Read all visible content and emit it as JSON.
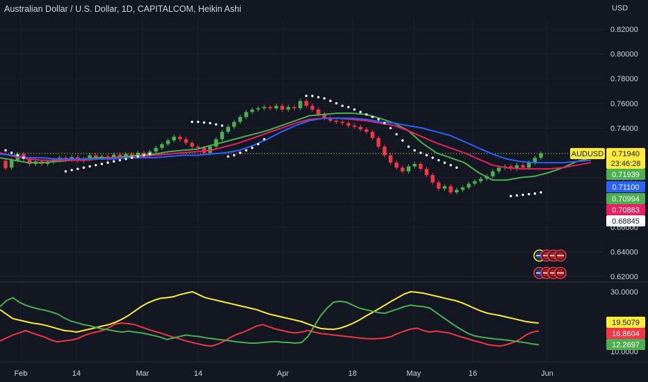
{
  "title": "Australian Dollar / U.S. Dollar, 1D, CAPITALCOM, Heikin Ashi",
  "currency": "USD",
  "colors": {
    "background": "#131722",
    "grid": "#1e222d",
    "up": "#4caf50",
    "down": "#f23645",
    "ma_fast": "#4caf50",
    "ma_mid": "#e91e63",
    "ma_slow": "#2962ff",
    "adx": "#ffeb3b",
    "di_plus": "#4caf50",
    "di_minus": "#f23645",
    "sar": "#ffffff",
    "symbol_label": "#ffeb3b"
  },
  "chart_data": [
    {
      "type": "candlestick",
      "x_ticks": [
        "Feb",
        "14",
        "Mar",
        "14",
        "Apr",
        "18",
        "May",
        "16",
        "Jun"
      ],
      "y_ticks": [
        "0.82000",
        "0.80000",
        "0.78000",
        "0.76000",
        "0.74000",
        "0.72000",
        "0.70000",
        "0.68000",
        "0.66000",
        "0.64000",
        "0.62000"
      ],
      "ylim": [
        0.613,
        0.826
      ],
      "symbol_label": "AUDUSD",
      "last_price": "0.71940",
      "countdown": "23:46:28",
      "price_labels": [
        {
          "value": "0.71939",
          "series": "ma_fast"
        },
        {
          "value": "0.71100",
          "series": "ma_slow"
        },
        {
          "value": "0.70994",
          "series": "ma_fast"
        },
        {
          "value": "0.70883",
          "series": "ma_mid"
        },
        {
          "value": "0.68845",
          "series": "sar"
        }
      ],
      "candles": [
        {
          "o": 0.7135,
          "c": 0.7075
        },
        {
          "o": 0.708,
          "c": 0.714
        },
        {
          "o": 0.714,
          "c": 0.719
        },
        {
          "o": 0.719,
          "c": 0.715
        },
        {
          "o": 0.715,
          "c": 0.711
        },
        {
          "o": 0.711,
          "c": 0.713
        },
        {
          "o": 0.713,
          "c": 0.711
        },
        {
          "o": 0.711,
          "c": 0.7125
        },
        {
          "o": 0.7125,
          "c": 0.714
        },
        {
          "o": 0.714,
          "c": 0.716
        },
        {
          "o": 0.716,
          "c": 0.7145
        },
        {
          "o": 0.7145,
          "c": 0.7165
        },
        {
          "o": 0.7165,
          "c": 0.7135
        },
        {
          "o": 0.7135,
          "c": 0.715
        },
        {
          "o": 0.715,
          "c": 0.718
        },
        {
          "o": 0.718,
          "c": 0.716
        },
        {
          "o": 0.716,
          "c": 0.717
        },
        {
          "o": 0.717,
          "c": 0.715
        },
        {
          "o": 0.715,
          "c": 0.7185
        },
        {
          "o": 0.7185,
          "c": 0.717
        },
        {
          "o": 0.717,
          "c": 0.719
        },
        {
          "o": 0.719,
          "c": 0.717
        },
        {
          "o": 0.717,
          "c": 0.72
        },
        {
          "o": 0.72,
          "c": 0.718
        },
        {
          "o": 0.718,
          "c": 0.721
        },
        {
          "o": 0.721,
          "c": 0.724
        },
        {
          "o": 0.724,
          "c": 0.727
        },
        {
          "o": 0.727,
          "c": 0.73
        },
        {
          "o": 0.73,
          "c": 0.733
        },
        {
          "o": 0.733,
          "c": 0.731
        },
        {
          "o": 0.731,
          "c": 0.728
        },
        {
          "o": 0.728,
          "c": 0.725
        },
        {
          "o": 0.725,
          "c": 0.724
        },
        {
          "o": 0.724,
          "c": 0.72
        },
        {
          "o": 0.72,
          "c": 0.725
        },
        {
          "o": 0.725,
          "c": 0.731
        },
        {
          "o": 0.731,
          "c": 0.737
        },
        {
          "o": 0.737,
          "c": 0.741
        },
        {
          "o": 0.741,
          "c": 0.745
        },
        {
          "o": 0.745,
          "c": 0.749
        },
        {
          "o": 0.749,
          "c": 0.753
        },
        {
          "o": 0.753,
          "c": 0.755
        },
        {
          "o": 0.755,
          "c": 0.756
        },
        {
          "o": 0.756,
          "c": 0.757
        },
        {
          "o": 0.757,
          "c": 0.756
        },
        {
          "o": 0.756,
          "c": 0.758
        },
        {
          "o": 0.758,
          "c": 0.755
        },
        {
          "o": 0.755,
          "c": 0.757
        },
        {
          "o": 0.757,
          "c": 0.756
        },
        {
          "o": 0.756,
          "c": 0.762
        },
        {
          "o": 0.762,
          "c": 0.758
        },
        {
          "o": 0.758,
          "c": 0.755
        },
        {
          "o": 0.755,
          "c": 0.751
        },
        {
          "o": 0.751,
          "c": 0.748
        },
        {
          "o": 0.748,
          "c": 0.746
        },
        {
          "o": 0.746,
          "c": 0.745
        },
        {
          "o": 0.745,
          "c": 0.744
        },
        {
          "o": 0.744,
          "c": 0.742
        },
        {
          "o": 0.742,
          "c": 0.741
        },
        {
          "o": 0.741,
          "c": 0.739
        },
        {
          "o": 0.739,
          "c": 0.737
        },
        {
          "o": 0.737,
          "c": 0.732
        },
        {
          "o": 0.732,
          "c": 0.725
        },
        {
          "o": 0.725,
          "c": 0.718
        },
        {
          "o": 0.718,
          "c": 0.712
        },
        {
          "o": 0.712,
          "c": 0.708
        },
        {
          "o": 0.708,
          "c": 0.705
        },
        {
          "o": 0.705,
          "c": 0.709
        },
        {
          "o": 0.709,
          "c": 0.711
        },
        {
          "o": 0.711,
          "c": 0.707
        },
        {
          "o": 0.707,
          "c": 0.702
        },
        {
          "o": 0.702,
          "c": 0.696
        },
        {
          "o": 0.696,
          "c": 0.691
        },
        {
          "o": 0.691,
          "c": 0.693
        },
        {
          "o": 0.693,
          "c": 0.688
        },
        {
          "o": 0.688,
          "c": 0.69
        },
        {
          "o": 0.69,
          "c": 0.692
        },
        {
          "o": 0.692,
          "c": 0.695
        },
        {
          "o": 0.695,
          "c": 0.697
        },
        {
          "o": 0.697,
          "c": 0.699
        },
        {
          "o": 0.699,
          "c": 0.701
        },
        {
          "o": 0.701,
          "c": 0.705
        },
        {
          "o": 0.705,
          "c": 0.708
        },
        {
          "o": 0.708,
          "c": 0.709
        },
        {
          "o": 0.709,
          "c": 0.707
        },
        {
          "o": 0.707,
          "c": 0.71
        },
        {
          "o": 0.71,
          "c": 0.708
        },
        {
          "o": 0.708,
          "c": 0.712
        },
        {
          "o": 0.712,
          "c": 0.716
        },
        {
          "o": 0.716,
          "c": 0.7194
        }
      ],
      "moving_averages": {
        "ma_fast": [
          0.716,
          0.714,
          0.712,
          0.712,
          0.713,
          0.714,
          0.715,
          0.716,
          0.716,
          0.717,
          0.718,
          0.719,
          0.721,
          0.722,
          0.723,
          0.726,
          0.729,
          0.732,
          0.735,
          0.738,
          0.742,
          0.746,
          0.75,
          0.751,
          0.752,
          0.752,
          0.751,
          0.748,
          0.744,
          0.738,
          0.728,
          0.72,
          0.716,
          0.712,
          0.704,
          0.698,
          0.698,
          0.7,
          0.701,
          0.704,
          0.708,
          0.713,
          0.716
        ],
        "ma_mid": [
          0.72,
          0.717,
          0.715,
          0.714,
          0.714,
          0.714,
          0.714,
          0.715,
          0.716,
          0.716,
          0.717,
          0.718,
          0.719,
          0.72,
          0.721,
          0.722,
          0.725,
          0.728,
          0.732,
          0.736,
          0.74,
          0.744,
          0.747,
          0.748,
          0.748,
          0.747,
          0.746,
          0.744,
          0.742,
          0.738,
          0.733,
          0.728,
          0.724,
          0.72,
          0.715,
          0.71,
          0.708,
          0.707,
          0.707,
          0.707,
          0.708,
          0.71,
          0.712
        ],
        "ma_slow": [
          0.719,
          0.718,
          0.716,
          0.716,
          0.715,
          0.715,
          0.715,
          0.715,
          0.715,
          0.716,
          0.716,
          0.716,
          0.717,
          0.718,
          0.718,
          0.719,
          0.72,
          0.722,
          0.726,
          0.731,
          0.737,
          0.742,
          0.746,
          0.748,
          0.748,
          0.748,
          0.747,
          0.745,
          0.744,
          0.742,
          0.74,
          0.737,
          0.734,
          0.729,
          0.724,
          0.719,
          0.715,
          0.713,
          0.712,
          0.712,
          0.712,
          0.713,
          0.714
        ]
      },
      "parabolic_sar": [
        [
          0,
          0.722
        ],
        [
          1,
          0.72
        ],
        [
          2,
          0.718
        ],
        [
          3,
          0.716
        ],
        [
          10,
          0.705
        ],
        [
          11,
          0.706
        ],
        [
          12,
          0.707
        ],
        [
          13,
          0.708
        ],
        [
          14,
          0.709
        ],
        [
          15,
          0.71
        ],
        [
          16,
          0.711
        ],
        [
          17,
          0.712
        ],
        [
          18,
          0.713
        ],
        [
          19,
          0.714
        ],
        [
          20,
          0.715
        ],
        [
          21,
          0.716
        ],
        [
          22,
          0.717
        ],
        [
          23,
          0.718
        ],
        [
          24,
          0.719
        ],
        [
          31,
          0.745
        ],
        [
          32,
          0.745
        ],
        [
          33,
          0.7445
        ],
        [
          34,
          0.744
        ],
        [
          35,
          0.743
        ],
        [
          36,
          0.742
        ],
        [
          37,
          0.717
        ],
        [
          38,
          0.718
        ],
        [
          39,
          0.72
        ],
        [
          40,
          0.722
        ],
        [
          41,
          0.724
        ],
        [
          42,
          0.727
        ],
        [
          43,
          0.731
        ],
        [
          50,
          0.766
        ],
        [
          51,
          0.766
        ],
        [
          52,
          0.765
        ],
        [
          53,
          0.764
        ],
        [
          54,
          0.762
        ],
        [
          55,
          0.76
        ],
        [
          56,
          0.758
        ],
        [
          57,
          0.757
        ],
        [
          58,
          0.755
        ],
        [
          59,
          0.753
        ],
        [
          60,
          0.751
        ],
        [
          61,
          0.749
        ],
        [
          62,
          0.747
        ],
        [
          63,
          0.744
        ],
        [
          64,
          0.74
        ],
        [
          65,
          0.735
        ],
        [
          66,
          0.73
        ],
        [
          67,
          0.725
        ],
        [
          68,
          0.722
        ],
        [
          69,
          0.72
        ],
        [
          70,
          0.718
        ],
        [
          71,
          0.716
        ],
        [
          72,
          0.714
        ],
        [
          73,
          0.712
        ],
        [
          74,
          0.71
        ],
        [
          75,
          0.708
        ],
        [
          84,
          0.685
        ],
        [
          85,
          0.6855
        ],
        [
          86,
          0.686
        ],
        [
          87,
          0.6865
        ],
        [
          88,
          0.687
        ],
        [
          89,
          0.688
        ]
      ]
    },
    {
      "type": "line",
      "y_ticks": [
        "30.0000",
        "10.0000"
      ],
      "ylim": [
        9.0,
        31.0
      ],
      "series": [
        {
          "values": [
            24,
            22.5,
            21,
            20.5,
            20,
            19.5,
            19.2,
            18.8,
            18.2,
            17.6,
            17,
            16.8,
            16.5,
            17,
            17.5,
            18,
            18.5,
            19,
            19.8,
            20.8,
            22,
            23.5,
            25,
            26.2,
            27.1,
            27.8,
            28,
            28.3,
            29,
            29.5,
            30,
            29,
            28,
            27.5,
            27,
            26.5,
            26,
            25.5,
            25,
            24.5,
            24,
            23.2,
            22.5,
            22,
            21.5,
            21,
            20.5,
            20,
            19.2,
            18.4,
            17.7,
            17.5,
            17.4,
            17.8,
            18.5,
            19.4,
            20.5,
            21.8,
            23,
            24.2,
            25.5,
            26.8,
            28,
            29.2,
            30,
            29.8,
            29.5,
            29,
            28.5,
            28,
            27.5,
            27,
            26.3,
            25.4,
            24.4,
            23.5,
            22.8,
            22.4,
            22,
            21.5,
            21,
            20.5,
            20,
            19.7,
            19.5
          ],
          "color": "adx",
          "label": "19.5079"
        },
        {
          "values": [
            13.5,
            14.5,
            15.5,
            16.2,
            17,
            16.2,
            15.5,
            14.8,
            13.8,
            13.2,
            13.5,
            13.8,
            14.2,
            15.2,
            16,
            16.5,
            17,
            18,
            19.2,
            19.5,
            19.3,
            19,
            18.2,
            17.5,
            16.8,
            16.2,
            15.5,
            14.8,
            14.2,
            13.5,
            13,
            12.5,
            12,
            11.8,
            12.5,
            13.5,
            14.8,
            15.8,
            16.5,
            17.5,
            18.5,
            19,
            18.2,
            17.5,
            17,
            16.5,
            16.2,
            16.5,
            17,
            16.5,
            16,
            15.8,
            15.5,
            15.3,
            15,
            14.8,
            14.5,
            14.3,
            14.2,
            14.3,
            14.5,
            15,
            16,
            16.8,
            17.5,
            17.8,
            17,
            16.5,
            16.8,
            16.5,
            16.2,
            15.5,
            14.8,
            14.2,
            13.5,
            13,
            12.3,
            12,
            11.8,
            12.3,
            13,
            14,
            15.5,
            16.5,
            16.86
          ],
          "color": "di_minus",
          "label": "16.8604"
        },
        {
          "values": [
            25,
            27,
            28,
            26.5,
            25.5,
            24.8,
            24.2,
            23.8,
            23.2,
            22.5,
            21.2,
            20.2,
            19.6,
            19,
            18.6,
            18,
            17.5,
            17.2,
            16.8,
            16.5,
            16.8,
            16.5,
            16.2,
            15.8,
            15.3,
            14.8,
            14,
            14.5,
            15,
            15.5,
            15.2,
            15,
            14.6,
            14.3,
            14,
            13.8,
            13.5,
            13.2,
            13,
            12.8,
            12.8,
            13,
            13.2,
            13.3,
            13.1,
            13,
            12.8,
            13,
            15,
            18.5,
            22,
            24.5,
            26.5,
            26.8,
            26.5,
            25.5,
            24.5,
            24,
            23.5,
            23,
            22.8,
            23.5,
            24.2,
            25,
            25.5,
            25.2,
            25,
            24.5,
            23,
            21.5,
            20,
            18.5,
            17.2,
            16,
            15.2,
            14.8,
            14.5,
            14.2,
            14,
            13.8,
            13.5,
            13.2,
            12.9,
            12.5,
            12.27
          ],
          "color": "di_plus",
          "label": "12.2697"
        }
      ]
    }
  ]
}
